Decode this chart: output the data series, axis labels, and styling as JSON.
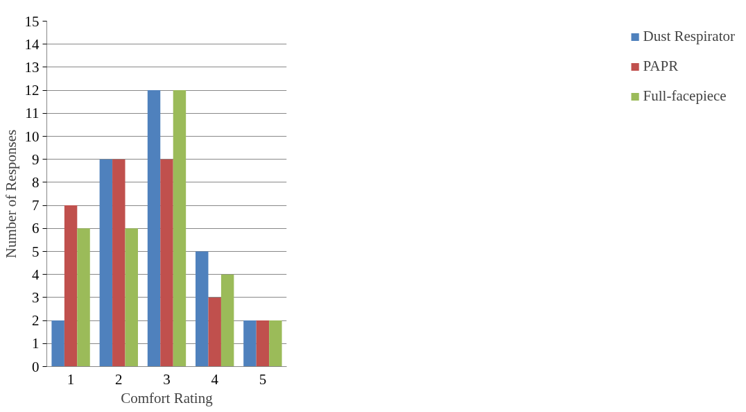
{
  "chart_data": {
    "type": "bar",
    "xlabel": "Comfort Rating",
    "ylabel": "Number of Responses",
    "categories": [
      "1",
      "2",
      "3",
      "4",
      "5"
    ],
    "series": [
      {
        "name": "Dust Respirator",
        "color": "#4f81bd",
        "values": [
          2,
          9,
          12,
          5,
          2
        ]
      },
      {
        "name": "PAPR",
        "color": "#c0504d",
        "values": [
          7,
          9,
          9,
          3,
          2
        ]
      },
      {
        "name": "Full-facepiece",
        "color": "#9bbb59",
        "values": [
          6,
          6,
          12,
          4,
          2
        ]
      }
    ],
    "ylim": [
      0,
      15
    ],
    "yticks": [
      0,
      1,
      2,
      3,
      4,
      5,
      6,
      7,
      8,
      9,
      10,
      11,
      12,
      13,
      14,
      15
    ],
    "grid": "y",
    "legend": "right"
  }
}
